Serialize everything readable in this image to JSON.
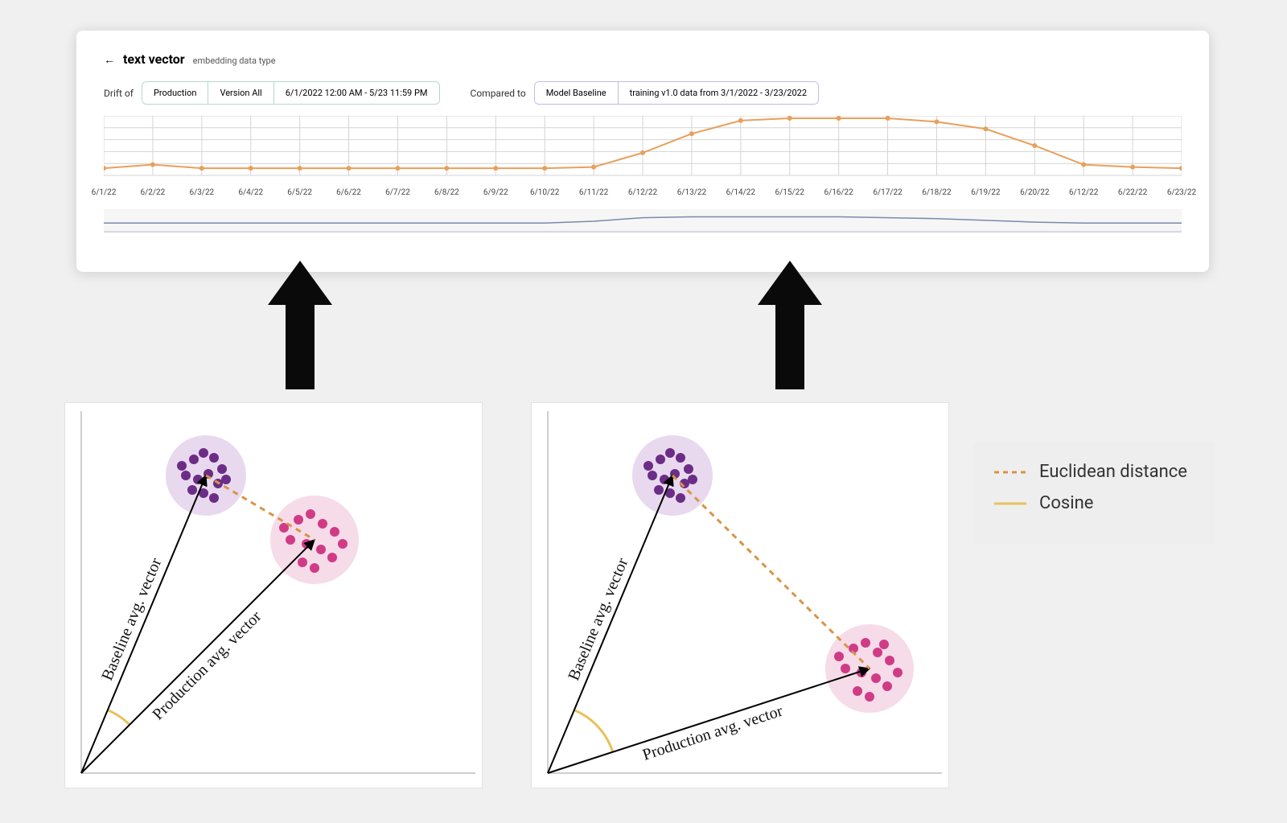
{
  "card": {
    "title": "text vector",
    "subtitle": "embedding data type",
    "drift_label": "Drift of",
    "compared_label": "Compared to",
    "drift_pills": [
      "Production",
      "Version All",
      "6/1/2022 12:00 AM - 5/23 11:59 PM"
    ],
    "baseline_pills": [
      "Model Baseline",
      "training v1.0 data from 3/1/2022 - 3/23/2022"
    ]
  },
  "drift_chart": {
    "type": "line",
    "line_color": "#e8a05c",
    "marker_color": "#e8a05c",
    "marker_radius": 3,
    "grid_color": "#d4d4d4",
    "background_color": "#ffffff",
    "ylim": [
      0,
      100
    ],
    "grid_rows": 5,
    "x_labels": [
      "6/1/22",
      "6/2/22",
      "6/3/22",
      "6/4/22",
      "6/5/22",
      "6/6/22",
      "6/7/22",
      "6/8/22",
      "6/9/22",
      "6/10/22",
      "6/11/22",
      "6/12/22",
      "6/13/22",
      "6/14/22",
      "6/15/22",
      "6/16/22",
      "6/17/22",
      "6/18/22",
      "6/19/22",
      "6/20/22",
      "6/12/22",
      "6/22/22",
      "6/23/22"
    ],
    "values": [
      12,
      18,
      12,
      12,
      12,
      12,
      12,
      12,
      12,
      12,
      14,
      38,
      70,
      92,
      96,
      96,
      96,
      90,
      78,
      50,
      18,
      14,
      12
    ]
  },
  "mini_chart": {
    "type": "line",
    "line_color": "#7a8aad",
    "background": "#f6f6f6",
    "values": [
      8,
      8,
      8,
      8,
      8,
      8,
      8,
      8,
      8,
      8,
      10,
      14,
      15,
      15,
      15,
      15,
      14,
      13,
      11,
      9,
      8,
      8,
      8
    ]
  },
  "arrows": {
    "fill": "#0a0a0a",
    "left_anchor_date_index": 4,
    "right_anchor_date_index": 14
  },
  "scatter_left": {
    "type": "scatter",
    "baseline_label": "Baseline avg. vector",
    "production_label": "Production avg. vector",
    "axis_color": "#bfbfbf",
    "baseline_cluster": {
      "halo_color": "#e8d9ef",
      "dot_color": "#6b2d86",
      "center": [
        175,
        90
      ],
      "halo_r": 50,
      "points": [
        [
          160,
          70
        ],
        [
          172,
          62
        ],
        [
          185,
          68
        ],
        [
          195,
          82
        ],
        [
          150,
          90
        ],
        [
          165,
          95
        ],
        [
          178,
          88
        ],
        [
          190,
          100
        ],
        [
          158,
          108
        ],
        [
          172,
          112
        ],
        [
          185,
          118
        ],
        [
          200,
          95
        ],
        [
          145,
          78
        ]
      ]
    },
    "production_cluster": {
      "halo_color": "#f6dbe9",
      "dot_color": "#d03b86",
      "center": [
        310,
        170
      ],
      "halo_r": 55,
      "points": [
        [
          290,
          145
        ],
        [
          305,
          138
        ],
        [
          320,
          150
        ],
        [
          335,
          160
        ],
        [
          280,
          170
        ],
        [
          300,
          175
        ],
        [
          318,
          182
        ],
        [
          332,
          192
        ],
        [
          295,
          198
        ],
        [
          310,
          205
        ],
        [
          345,
          175
        ],
        [
          272,
          155
        ]
      ]
    },
    "euclid_color": "#d99445",
    "cosine_color": "#e6c35a"
  },
  "scatter_right": {
    "type": "scatter",
    "baseline_label": "Baseline avg. vector",
    "production_label": "Production avg. vector",
    "axis_color": "#bfbfbf",
    "baseline_cluster": {
      "halo_color": "#e8d9ef",
      "dot_color": "#6b2d86",
      "center": [
        175,
        90
      ],
      "halo_r": 50,
      "points": [
        [
          160,
          70
        ],
        [
          172,
          62
        ],
        [
          185,
          68
        ],
        [
          195,
          82
        ],
        [
          150,
          90
        ],
        [
          165,
          95
        ],
        [
          178,
          88
        ],
        [
          190,
          100
        ],
        [
          158,
          108
        ],
        [
          172,
          112
        ],
        [
          185,
          118
        ],
        [
          200,
          95
        ],
        [
          145,
          78
        ]
      ]
    },
    "production_cluster": {
      "halo_color": "#f6dbe9",
      "dot_color": "#d03b86",
      "center": [
        420,
        330
      ],
      "halo_r": 55,
      "points": [
        [
          400,
          305
        ],
        [
          415,
          298
        ],
        [
          430,
          310
        ],
        [
          445,
          320
        ],
        [
          390,
          330
        ],
        [
          410,
          335
        ],
        [
          428,
          342
        ],
        [
          442,
          352
        ],
        [
          405,
          358
        ],
        [
          420,
          365
        ],
        [
          455,
          335
        ],
        [
          382,
          315
        ],
        [
          438,
          300
        ]
      ]
    },
    "euclid_color": "#d99445",
    "cosine_color": "#e6c35a"
  },
  "legend": {
    "euclid": "Euclidean distance",
    "cosine": "Cosine",
    "euclid_color": "#d99445",
    "cosine_color": "#e6c35a"
  }
}
